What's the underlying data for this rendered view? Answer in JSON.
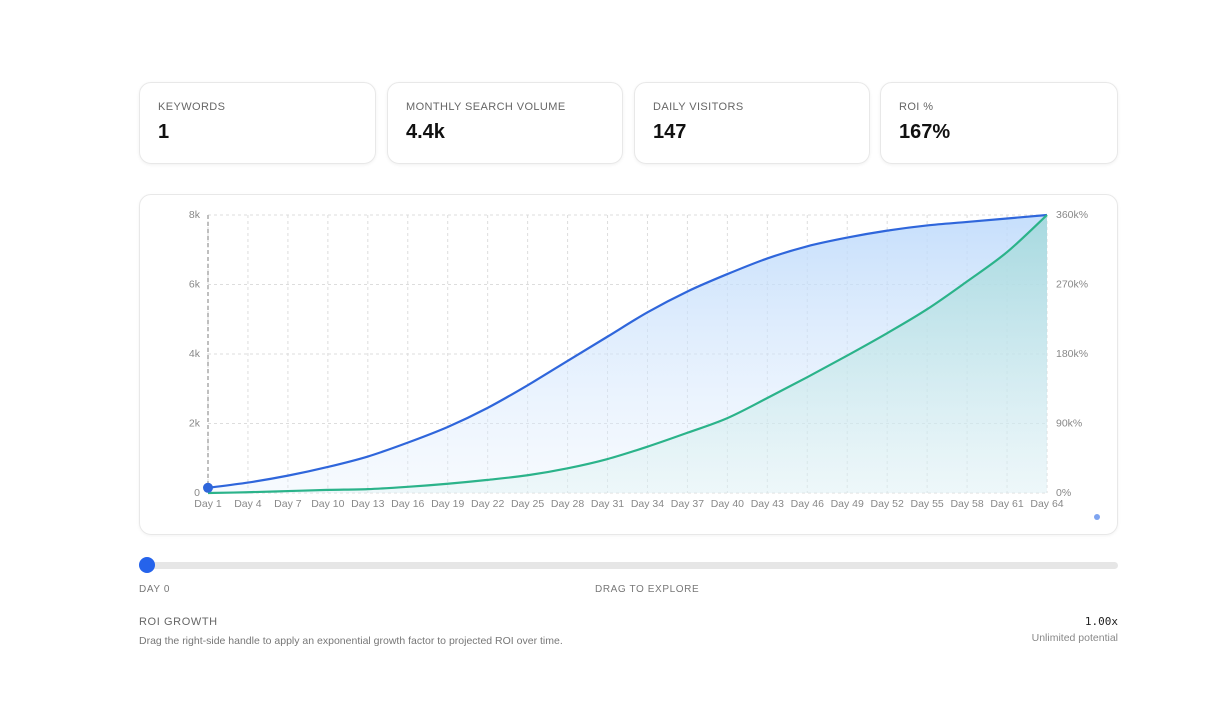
{
  "stats": [
    {
      "label": "KEYWORDS",
      "value": "1"
    },
    {
      "label": "MONTHLY SEARCH VOLUME",
      "value": "4.4k"
    },
    {
      "label": "DAILY VISITORS",
      "value": "147"
    },
    {
      "label": "ROI %",
      "value": "167%"
    }
  ],
  "chart_data": {
    "type": "line",
    "categories": [
      "Day 1",
      "Day 4",
      "Day 7",
      "Day 10",
      "Day 13",
      "Day 16",
      "Day 19",
      "Day 22",
      "Day 25",
      "Day 28",
      "Day 31",
      "Day 34",
      "Day 37",
      "Day 40",
      "Day 43",
      "Day 46",
      "Day 49",
      "Day 52",
      "Day 55",
      "Day 58",
      "Day 61",
      "Day 64"
    ],
    "series": [
      {
        "color": "#2f66db",
        "values": [
          150,
          300,
          500,
          750,
          1050,
          1450,
          1900,
          2450,
          3100,
          3800,
          4500,
          5200,
          5800,
          6300,
          6750,
          7100,
          7350,
          7550,
          7700,
          7800,
          7900,
          8000
        ]
      },
      {
        "color": "#2bb38a",
        "axis": "y2",
        "values": [
          0,
          1000,
          2500,
          4000,
          5000,
          8000,
          12000,
          17000,
          23000,
          32000,
          44000,
          60000,
          78000,
          97000,
          123000,
          150000,
          178000,
          207000,
          238000,
          274000,
          312000,
          360000
        ]
      }
    ],
    "ylim": [
      0,
      8000
    ],
    "yticks": [
      0,
      {
        "value": 2000,
        "label": "2k"
      },
      {
        "value": 4000,
        "label": "4k"
      },
      {
        "value": 6000,
        "label": "6k"
      },
      {
        "value": 8000,
        "label": "8k"
      }
    ],
    "y2lim": [
      0,
      360000
    ],
    "y2ticks": [
      {
        "value": 0,
        "label": "0%"
      },
      {
        "value": 90000,
        "label": "90k%"
      },
      {
        "value": 180000,
        "label": "180k%"
      },
      {
        "value": 270000,
        "label": "270k%"
      },
      {
        "value": 360000,
        "label": "360k%"
      }
    ],
    "grid": true
  },
  "slider": {
    "start": "DAY 0",
    "hint": "DRAG TO EXPLORE"
  },
  "footer": {
    "title": "ROI GROWTH",
    "description": "Drag the right-side handle to apply an exponential growth factor to projected ROI over time.",
    "factor": "1.00x",
    "note": "Unlimited potential"
  }
}
